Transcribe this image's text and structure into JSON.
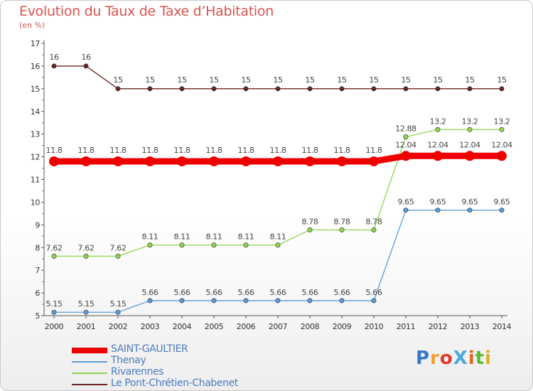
{
  "title": "Evolution du Taux de Taxe d’Habitation",
  "unit": "(en %)",
  "logo": "ProXiti",
  "chart_data": {
    "type": "line",
    "x": [
      "2000",
      "2001",
      "2002",
      "2003",
      "2004",
      "2005",
      "2006",
      "2007",
      "2008",
      "2009",
      "2010",
      "2011",
      "2012",
      "2013",
      "2014"
    ],
    "ylim": [
      5,
      17
    ],
    "yticks": [
      "5",
      "6",
      "7",
      "8",
      "9",
      "10",
      "11",
      "12",
      "13",
      "14",
      "15",
      "16",
      "17"
    ],
    "grid": false,
    "legend_position": "bottom-left",
    "series": [
      {
        "name": "SAINT-GAULTIER",
        "color": "#ee0000",
        "values": [
          11.8,
          11.8,
          11.8,
          11.8,
          11.8,
          11.8,
          11.8,
          11.8,
          11.8,
          11.8,
          11.8,
          12.04,
          12.04,
          12.04,
          12.04
        ],
        "labels": [
          "11.8",
          "11.8",
          "11.8",
          "11.8",
          "11.8",
          "11.8",
          "11.8",
          "11.8",
          "11.8",
          "11.8",
          "11.8",
          "12.04",
          "12.04",
          "12.04",
          "12.04"
        ]
      },
      {
        "name": "Thenay",
        "color": "#5b9bd5",
        "values": [
          5.15,
          5.15,
          5.15,
          5.66,
          5.66,
          5.66,
          5.66,
          5.66,
          5.66,
          5.66,
          5.66,
          9.65,
          9.65,
          9.65,
          9.65
        ],
        "labels": [
          "5.15",
          "5.15",
          "5.15",
          "5.66",
          "5.66",
          "5.66",
          "5.66",
          "5.66",
          "5.66",
          "5.66",
          "5.66",
          "9.65",
          "9.65",
          "9.65",
          "9.65"
        ]
      },
      {
        "name": "Rivarennes",
        "color": "#8fd44e",
        "values": [
          7.62,
          7.62,
          7.62,
          8.11,
          8.11,
          8.11,
          8.11,
          8.11,
          8.78,
          8.78,
          8.78,
          12.88,
          13.2,
          13.2,
          13.2
        ],
        "labels": [
          "7.62",
          "7.62",
          "7.62",
          "8.11",
          "8.11",
          "8.11",
          "8.11",
          "8.11",
          "8.78",
          "8.78",
          "8.78",
          "12.88",
          "13.2",
          "13.2",
          "13.2"
        ]
      },
      {
        "name": "Le Pont-Chrétien-Chabenet",
        "color": "#6b2424",
        "values": [
          16,
          16,
          15,
          15,
          15,
          15,
          15,
          15,
          15,
          15,
          15,
          15,
          15,
          15,
          15
        ],
        "labels": [
          "16",
          "16",
          "15",
          "15",
          "15",
          "15",
          "15",
          "15",
          "15",
          "15",
          "15",
          "15",
          "15",
          "15",
          "15"
        ]
      }
    ]
  }
}
